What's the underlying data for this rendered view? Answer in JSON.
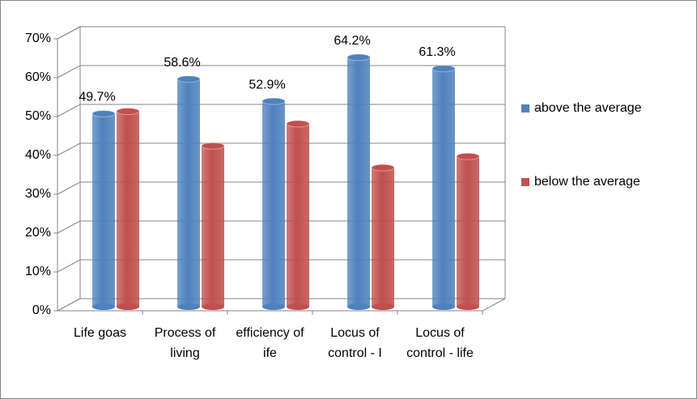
{
  "chart_data": {
    "type": "bar3d",
    "categories": [
      "Life goas",
      "Process of living",
      "efficiency of ife",
      "Locus of control - I",
      "Locus of control - life"
    ],
    "series": [
      {
        "name": "above the average",
        "color": "#4f81bd",
        "values": [
          49.7,
          58.6,
          52.9,
          64.2,
          61.3
        ],
        "value_labels": [
          "49.7%",
          "58.6%",
          "52.9%",
          "64.2%",
          "61.3%"
        ]
      },
      {
        "name": "below the average",
        "color": "#c0504d",
        "values": [
          50.3,
          41.4,
          47.1,
          35.8,
          38.7
        ]
      }
    ],
    "ylim": [
      0,
      70
    ],
    "yticks": [
      {
        "value": 0,
        "label": "0%"
      },
      {
        "value": 10,
        "label": "10%"
      },
      {
        "value": 20,
        "label": "20%"
      },
      {
        "value": 30,
        "label": "30%"
      },
      {
        "value": 40,
        "label": "40%"
      },
      {
        "value": 50,
        "label": "50%"
      },
      {
        "value": 60,
        "label": "60%"
      },
      {
        "value": 70,
        "label": "70%"
      }
    ],
    "grid": true,
    "legend": "right"
  }
}
